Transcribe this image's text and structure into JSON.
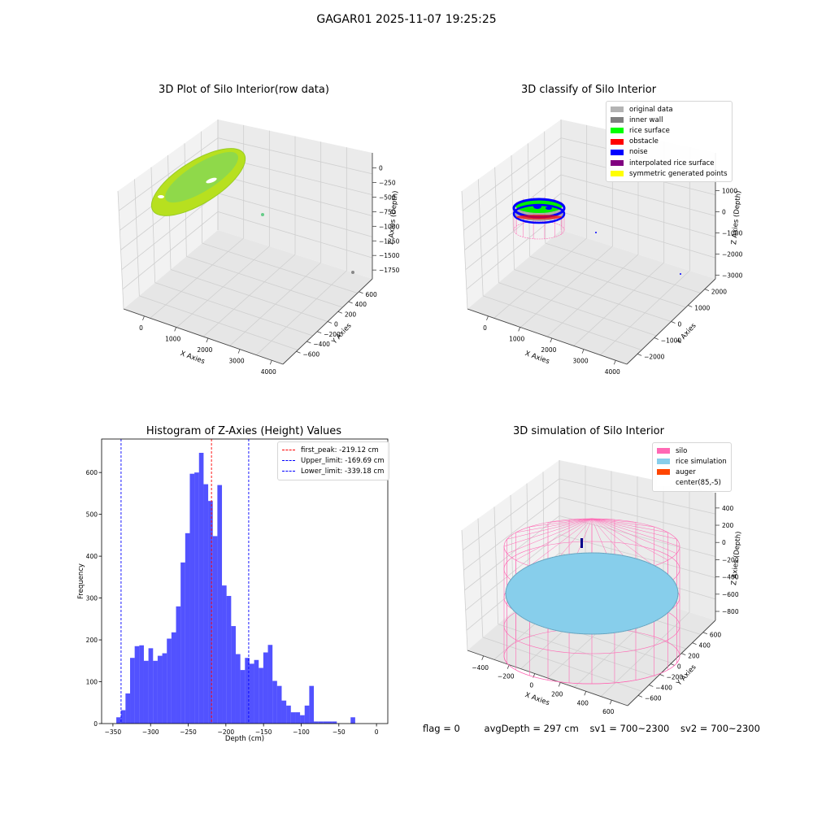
{
  "suptitle": "GAGAR01 2025-11-07 19:25:25",
  "panels": {
    "raw": {
      "title": "3D Plot of Silo Interior(row data)",
      "xlabel": "X Axies",
      "ylabel": "Y Axies",
      "zlabel": "Z Axies (Depth)",
      "xticks": [
        "0",
        "1000",
        "2000",
        "3000",
        "4000"
      ],
      "yticks": [
        "600",
        "400",
        "200",
        "0",
        "−200",
        "−400",
        "−600"
      ],
      "zticks": [
        "0",
        "−250",
        "−500",
        "−750",
        "−1000",
        "−1250",
        "−1500",
        "−1750"
      ]
    },
    "classify": {
      "title": "3D classify of Silo Interior",
      "xlabel": "X Axies",
      "ylabel": "Y Axies",
      "zlabel": "Z Axies (Depth)",
      "xticks": [
        "0",
        "1000",
        "2000",
        "3000",
        "4000"
      ],
      "yticks": [
        "2000",
        "1000",
        "0",
        "−1000",
        "−2000"
      ],
      "zticks": [
        "1000",
        "0",
        "−1000",
        "−2000",
        "−3000"
      ],
      "legend": [
        {
          "label": "original data",
          "color": "#b3b3b3"
        },
        {
          "label": "inner wall",
          "color": "#808080"
        },
        {
          "label": "rice surface",
          "color": "#00ff00"
        },
        {
          "label": "obstacle",
          "color": "#ff0000"
        },
        {
          "label": "noise",
          "color": "#0000ff"
        },
        {
          "label": "interpolated rice surface",
          "color": "#800080"
        },
        {
          "label": "symmetric generated points",
          "color": "#ffff00"
        }
      ]
    },
    "simulation": {
      "title": "3D simulation of Silo Interior",
      "xlabel": "X Axies",
      "ylabel": "Y Axies",
      "zlabel": "Z Axies (Depth)",
      "xticks": [
        "−400",
        "−200",
        "0",
        "200",
        "400",
        "600"
      ],
      "yticks": [
        "600",
        "400",
        "200",
        "0",
        "−200",
        "−400",
        "−600"
      ],
      "zticks": [
        "400",
        "200",
        "0",
        "−200",
        "−400",
        "−600",
        "−800"
      ],
      "legend": [
        {
          "label": "silo",
          "color": "#ff69b4"
        },
        {
          "label": "rice simulation",
          "color": "#87ceeb"
        },
        {
          "label": "auger",
          "color": "#ff4500"
        },
        {
          "label": "center(85,-5)",
          "color": "#ffffff"
        }
      ]
    }
  },
  "status": {
    "flag": "flag = 0",
    "avg_depth": "avgDepth = 297 cm",
    "sv1": "sv1 = 700~2300",
    "sv2": "sv2 = 700~2300"
  },
  "chart_data": [
    {
      "type": "bar",
      "title": "Histogram of Z-Axies (Height) Values",
      "xlabel": "Depth (cm)",
      "ylabel": "Frequency",
      "xlim": [
        -365,
        15
      ],
      "ylim": [
        0,
        680
      ],
      "xticks": [
        -350,
        -300,
        -250,
        -200,
        -150,
        -100,
        -50,
        0
      ],
      "yticks": [
        0,
        100,
        200,
        300,
        400,
        500,
        600
      ],
      "bar_color": "#0000ff",
      "bins": {
        "start": -345.5,
        "width": 6.1,
        "values": [
          15,
          32,
          72,
          157,
          185,
          187,
          150,
          180,
          150,
          162,
          168,
          203,
          218,
          280,
          385,
          455,
          597,
          600,
          647,
          572,
          532,
          448,
          570,
          330,
          305,
          233,
          166,
          128,
          157,
          143,
          152,
          133,
          170,
          188,
          102,
          90,
          55,
          43,
          27,
          27,
          20,
          43,
          90,
          5,
          5,
          5,
          5,
          5,
          0,
          0,
          0,
          15
        ]
      },
      "vlines": [
        {
          "label": "first_peak: -219.12 cm",
          "x": -219.12,
          "color": "#ff0000"
        },
        {
          "label": "Upper_limit: -169.69 cm",
          "x": -169.69,
          "color": "#0000ff"
        },
        {
          "label": "Lower_limit: -339.18 cm",
          "x": -339.18,
          "color": "#0000ff"
        }
      ],
      "legend_position": "top-right",
      "grid": false
    }
  ]
}
